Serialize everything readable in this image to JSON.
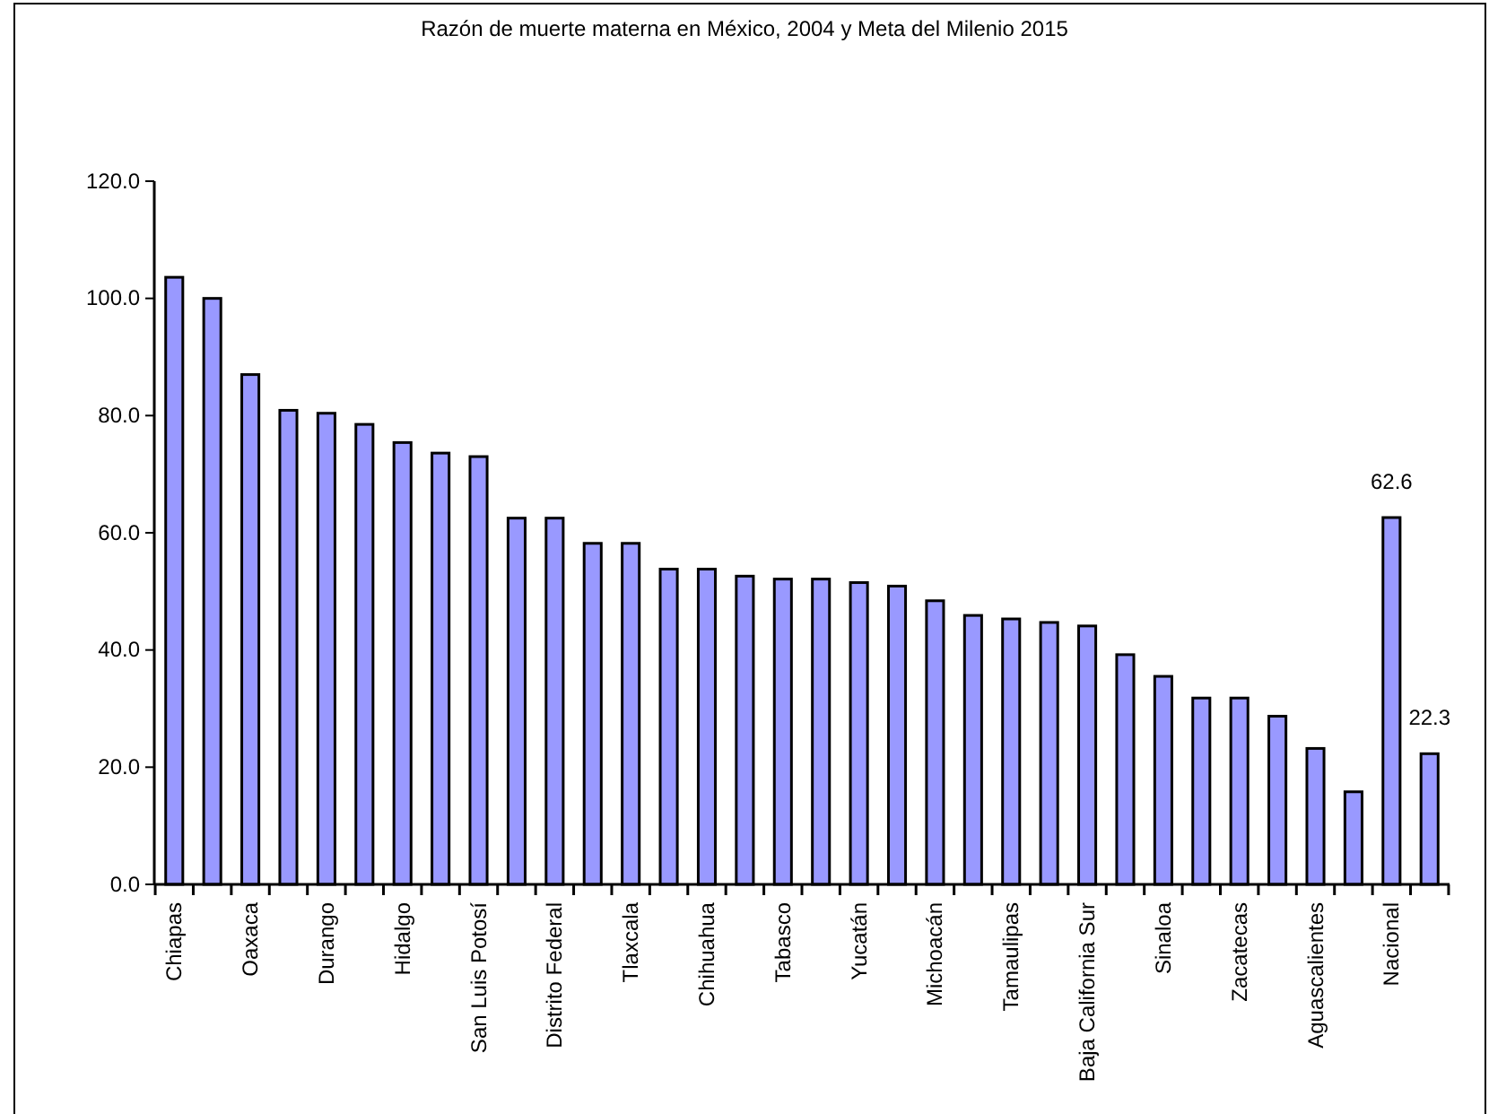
{
  "chart_data": {
    "type": "bar",
    "title": "Razón de muerte materna en México, 2004 y Meta del Milenio 2015",
    "categories": [
      "Chiapas",
      null,
      "Oaxaca",
      null,
      "Durango",
      null,
      "Hidalgo",
      null,
      "San Luis Potosí",
      null,
      "Distrito Federal",
      null,
      "Tlaxcala",
      null,
      "Chihuahua",
      null,
      "Tabasco",
      null,
      "Yucatán",
      null,
      "Michoacán",
      null,
      "Tamaulipas",
      null,
      "Baja California Sur",
      null,
      "Sinaloa",
      null,
      "Zacatecas",
      null,
      "Aguascalientes",
      null,
      "Nacional",
      null
    ],
    "values": [
      103.6,
      100.0,
      87.0,
      80.9,
      80.4,
      78.5,
      75.4,
      73.6,
      73.0,
      62.5,
      62.5,
      58.2,
      58.2,
      53.8,
      53.8,
      52.6,
      52.1,
      52.1,
      51.5,
      50.9,
      48.4,
      45.9,
      45.3,
      44.7,
      44.1,
      39.2,
      35.5,
      31.8,
      31.8,
      28.7,
      23.2,
      15.8,
      62.6,
      22.3
    ],
    "value_labels": [
      null,
      null,
      null,
      null,
      null,
      null,
      null,
      null,
      null,
      null,
      null,
      null,
      null,
      null,
      null,
      null,
      null,
      null,
      null,
      null,
      null,
      null,
      null,
      null,
      null,
      null,
      null,
      null,
      null,
      null,
      null,
      null,
      "62.6",
      "22.3"
    ],
    "color": "#9999ff",
    "ylim": [
      0,
      120
    ],
    "yticks": [
      {
        "value": 0,
        "label": "0.0"
      },
      {
        "value": 20,
        "label": "20.0"
      },
      {
        "value": 40,
        "label": "40.0"
      },
      {
        "value": 60,
        "label": "60.0"
      },
      {
        "value": 80,
        "label": "80.0"
      },
      {
        "value": 100,
        "label": "100.0"
      },
      {
        "value": 120,
        "label": "120.0"
      }
    ],
    "grid": false
  }
}
